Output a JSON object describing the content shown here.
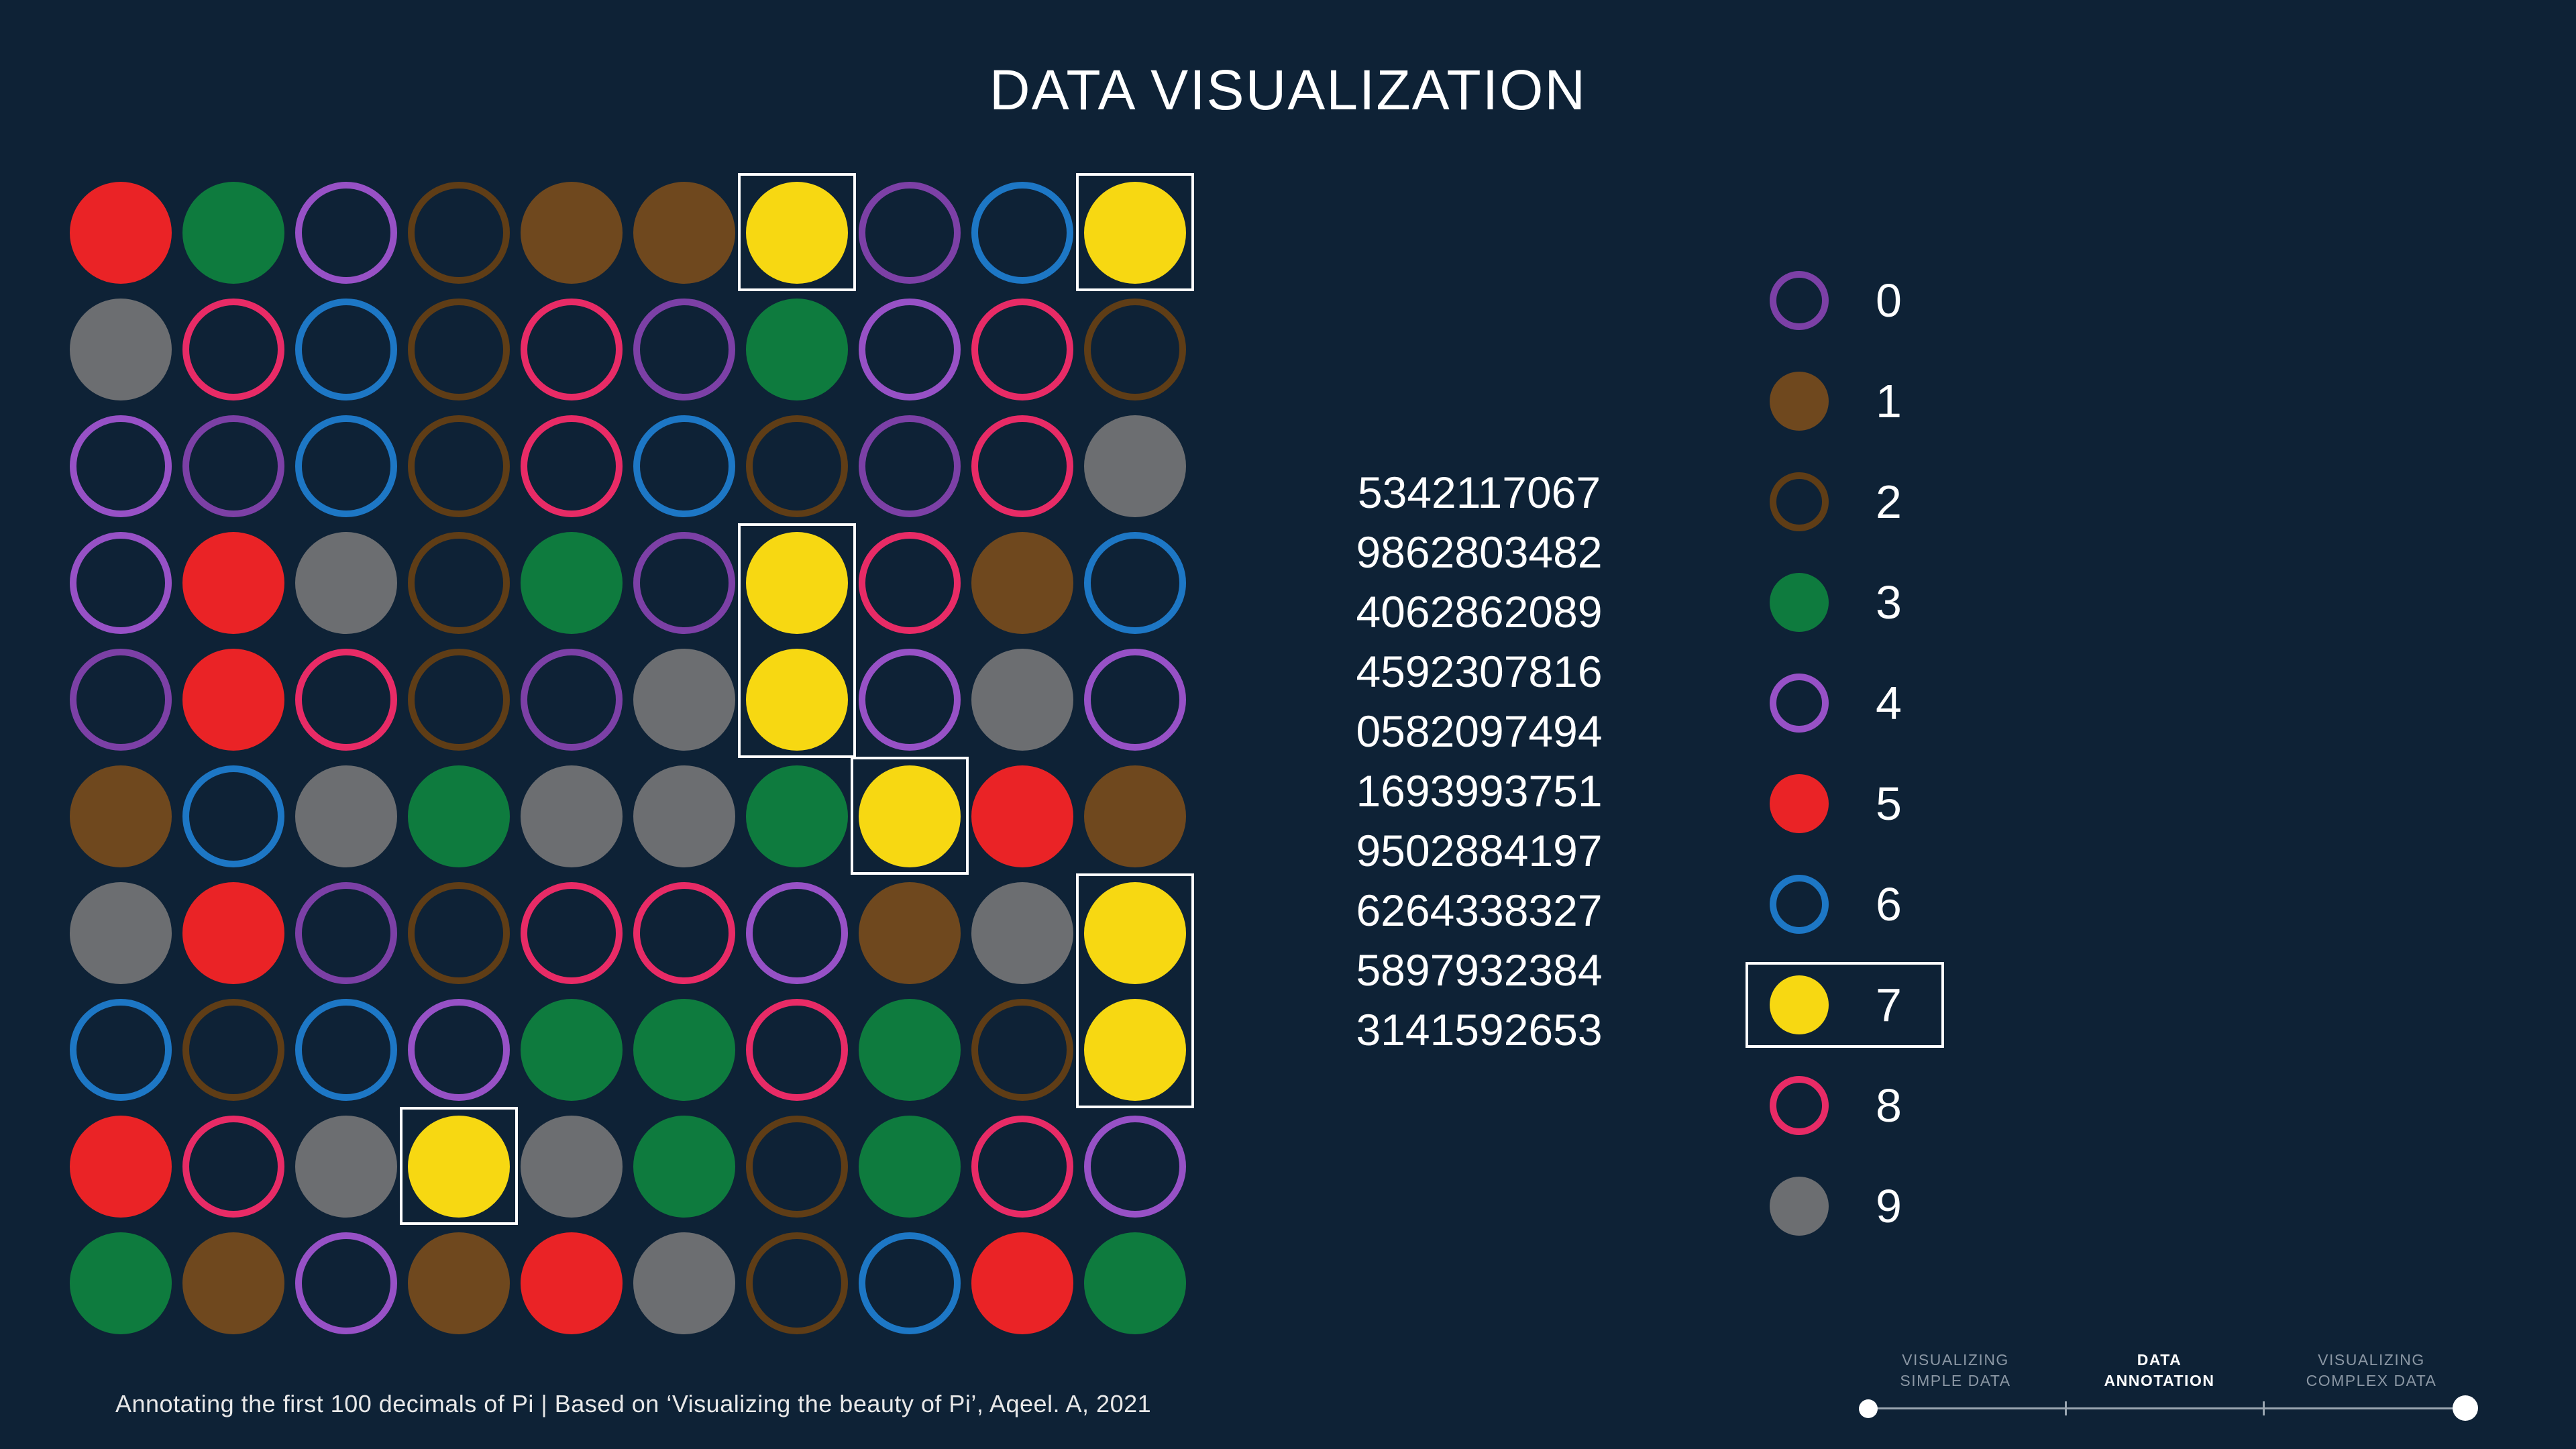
{
  "title": "DATA VISUALIZATION",
  "caption": "Annotating the first 100 decimals of Pi | Based on ‘Visualizing the beauty of Pi’, Aqeel. A, 2021",
  "pi_rows": [
    "5342117067",
    "9862803482",
    "4062862089",
    "4592307816",
    "0582097494",
    "1693993751",
    "9502884197",
    "6264338327",
    "5897932384",
    "3141592653"
  ],
  "digit_styles": {
    "0": {
      "color": "#7c40a6",
      "filled": false
    },
    "1": {
      "color": "#6f481e",
      "filled": true
    },
    "2": {
      "color": "#5f3d16",
      "filled": false
    },
    "3": {
      "color": "#0e7b3e",
      "filled": true
    },
    "4": {
      "color": "#9751c6",
      "filled": false
    },
    "5": {
      "color": "#ea2326",
      "filled": true
    },
    "6": {
      "color": "#1d77c5",
      "filled": false
    },
    "7": {
      "color": "#f7d812",
      "filled": true
    },
    "8": {
      "color": "#e82b66",
      "filled": false
    },
    "9": {
      "color": "#6c6e71",
      "filled": true
    }
  },
  "legend_digits": [
    "0",
    "1",
    "2",
    "3",
    "4",
    "5",
    "6",
    "7",
    "8",
    "9"
  ],
  "highlighted_digit": "7",
  "highlights": [
    {
      "row": 0,
      "col": 6,
      "span": 1
    },
    {
      "row": 0,
      "col": 9,
      "span": 1
    },
    {
      "row": 3,
      "col": 6,
      "span": 2
    },
    {
      "row": 5,
      "col": 7,
      "span": 1
    },
    {
      "row": 6,
      "col": 9,
      "span": 2
    },
    {
      "row": 8,
      "col": 3,
      "span": 1
    }
  ],
  "timeline": {
    "steps": [
      {
        "lines": [
          "VISUALIZING",
          "SIMPLE DATA"
        ],
        "active": false
      },
      {
        "lines": [
          "DATA",
          "ANNOTATION"
        ],
        "active": true
      },
      {
        "lines": [
          "VISUALIZING",
          "COMPLEX DATA"
        ],
        "active": false
      }
    ]
  },
  "colors": {
    "background": "#0e2236",
    "highlight_box": "#ffffff",
    "muted_label": "#8b97a4"
  },
  "chart_data": {
    "type": "heatmap",
    "title": "DATA VISUALIZATION",
    "rows": [
      "5342117067",
      "9862803482",
      "4062862089",
      "4592307816",
      "0582097494",
      "1693993751",
      "9502884197",
      "6264338327",
      "5897932384",
      "3141592653"
    ],
    "legend": [
      {
        "digit": 0,
        "style": "outline",
        "color": "#7c40a6"
      },
      {
        "digit": 1,
        "style": "filled",
        "color": "#6f481e"
      },
      {
        "digit": 2,
        "style": "outline",
        "color": "#5f3d16"
      },
      {
        "digit": 3,
        "style": "filled",
        "color": "#0e7b3e"
      },
      {
        "digit": 4,
        "style": "outline",
        "color": "#9751c6"
      },
      {
        "digit": 5,
        "style": "filled",
        "color": "#ea2326"
      },
      {
        "digit": 6,
        "style": "outline",
        "color": "#1d77c5"
      },
      {
        "digit": 7,
        "style": "filled",
        "color": "#f7d812",
        "highlighted": true
      },
      {
        "digit": 8,
        "style": "outline",
        "color": "#e82b66"
      },
      {
        "digit": 9,
        "style": "filled",
        "color": "#6c6e71"
      }
    ],
    "highlighted_digit": 7,
    "annotation": "Annotating the first 100 decimals of Pi | Based on ‘Visualizing the beauty of Pi’, Aqeel. A, 2021"
  }
}
